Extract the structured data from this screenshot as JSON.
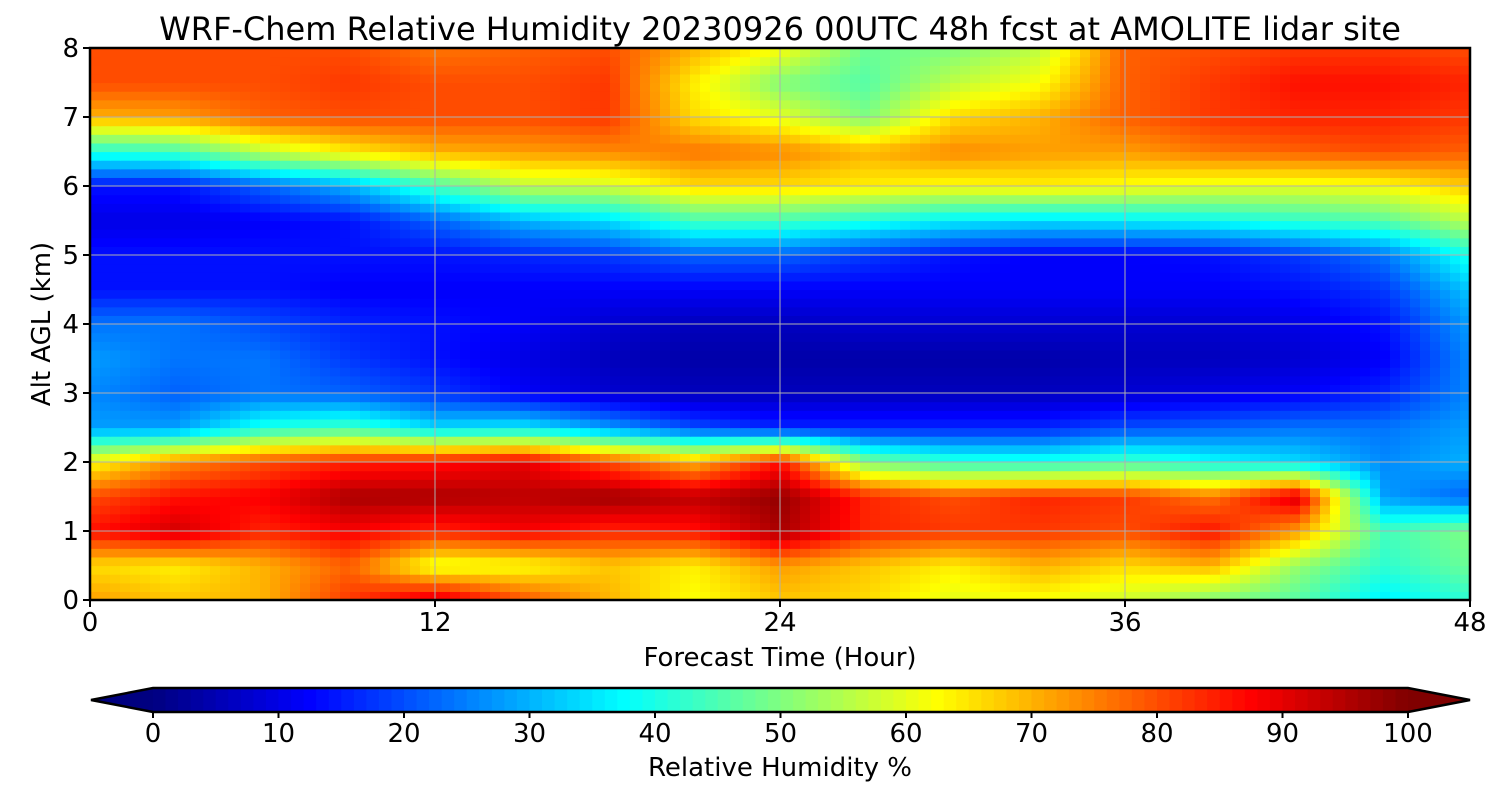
{
  "chart_data": {
    "type": "heatmap",
    "title": "WRF-Chem Relative Humidity 20230926 00UTC 48h fcst at AMOLITE lidar site",
    "xlabel": "Forecast Time (Hour)",
    "ylabel": "Alt AGL (km)",
    "xlim": [
      0,
      48
    ],
    "ylim": [
      0,
      8
    ],
    "xticks": [
      0,
      12,
      24,
      36,
      48
    ],
    "yticks": [
      0,
      1,
      2,
      3,
      4,
      5,
      6,
      7,
      8
    ],
    "grid": true,
    "colormap": "jet",
    "colorbar": {
      "label": "Relative Humidity %",
      "range": [
        0,
        100
      ],
      "ticks": [
        0,
        10,
        20,
        30,
        40,
        50,
        60,
        70,
        80,
        90,
        100
      ],
      "extend": "both",
      "orientation": "horizontal"
    },
    "x": [
      0,
      3,
      6,
      9,
      12,
      15,
      18,
      21,
      24,
      27,
      30,
      33,
      36,
      39,
      42,
      45,
      48
    ],
    "y": [
      0,
      0.5,
      1,
      1.5,
      2,
      2.5,
      3,
      3.5,
      4,
      4.5,
      5,
      5.5,
      6,
      6.5,
      7,
      7.5,
      8
    ],
    "z": [
      [
        72,
        68,
        70,
        82,
        92,
        80,
        70,
        62,
        68,
        66,
        60,
        62,
        58,
        50,
        46,
        36,
        42
      ],
      [
        66,
        64,
        70,
        78,
        60,
        62,
        68,
        64,
        72,
        68,
        64,
        70,
        66,
        70,
        52,
        42,
        48
      ],
      [
        86,
        92,
        84,
        88,
        84,
        88,
        84,
        86,
        96,
        84,
        82,
        82,
        80,
        86,
        72,
        44,
        50
      ],
      [
        80,
        86,
        88,
        96,
        96,
        94,
        97,
        94,
        98,
        84,
        80,
        84,
        82,
        76,
        92,
        28,
        22
      ],
      [
        62,
        74,
        80,
        84,
        86,
        90,
        80,
        70,
        86,
        50,
        42,
        40,
        44,
        38,
        34,
        26,
        30
      ],
      [
        28,
        28,
        40,
        44,
        34,
        36,
        28,
        20,
        16,
        16,
        16,
        16,
        20,
        22,
        24,
        24,
        28
      ],
      [
        26,
        22,
        24,
        22,
        18,
        12,
        8,
        6,
        6,
        6,
        6,
        6,
        8,
        10,
        12,
        16,
        26
      ],
      [
        28,
        24,
        24,
        18,
        14,
        10,
        6,
        4,
        4,
        4,
        4,
        4,
        6,
        6,
        8,
        12,
        26
      ],
      [
        24,
        24,
        20,
        16,
        14,
        12,
        8,
        6,
        6,
        8,
        8,
        8,
        8,
        8,
        10,
        14,
        28
      ],
      [
        14,
        14,
        14,
        12,
        12,
        12,
        12,
        12,
        12,
        12,
        12,
        12,
        12,
        12,
        14,
        18,
        32
      ],
      [
        14,
        14,
        14,
        14,
        14,
        16,
        18,
        22,
        22,
        18,
        14,
        12,
        12,
        14,
        18,
        24,
        40
      ],
      [
        10,
        10,
        12,
        14,
        22,
        30,
        34,
        44,
        44,
        40,
        36,
        34,
        36,
        38,
        42,
        46,
        56
      ],
      [
        14,
        14,
        22,
        30,
        44,
        56,
        58,
        66,
        66,
        64,
        62,
        64,
        62,
        60,
        60,
        62,
        68
      ],
      [
        40,
        44,
        56,
        64,
        70,
        72,
        74,
        76,
        74,
        70,
        74,
        72,
        72,
        76,
        78,
        80,
        78
      ],
      [
        70,
        72,
        78,
        80,
        80,
        80,
        82,
        66,
        60,
        50,
        66,
        70,
        78,
        82,
        84,
        84,
        82
      ],
      [
        80,
        80,
        80,
        82,
        80,
        80,
        82,
        64,
        50,
        46,
        56,
        62,
        78,
        82,
        86,
        86,
        84
      ],
      [
        80,
        80,
        80,
        80,
        76,
        78,
        80,
        70,
        62,
        48,
        50,
        56,
        78,
        80,
        82,
        82,
        80
      ]
    ]
  }
}
